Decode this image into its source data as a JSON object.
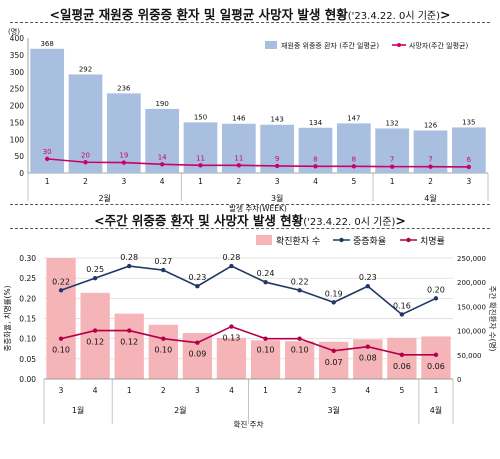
{
  "panel1": {
    "title": "<일평균 재원중 위중증 환자 및 일평균 사망자 발생 현황",
    "title_sub": "('23.4.22. 0시 기준)",
    "title_end": ">"
  },
  "panel2": {
    "title": "<주간 위중증 환자 및 사망자 발생 현황",
    "title_sub": "('23.4.22. 0시 기준)",
    "title_end": ">"
  },
  "colors": {
    "bar1": "#a8bfe0",
    "line1": "#cc0066",
    "bar2": "#f4b4b8",
    "line2": "#1f3864",
    "line3": "#b0004a"
  },
  "chart_data": [
    {
      "type": "bar",
      "categories": [
        "1",
        "2",
        "3",
        "4",
        "1",
        "2",
        "3",
        "4",
        "5",
        "1",
        "2",
        "3"
      ],
      "month_groups": [
        {
          "label": "2월",
          "count": 4
        },
        {
          "label": "3월",
          "count": 5
        },
        {
          "label": "4월",
          "count": 3
        }
      ],
      "series": [
        {
          "name": "재원중 위중증 환자 (주간 일평균)",
          "type": "bar",
          "values": [
            368,
            292,
            236,
            190,
            150,
            146,
            143,
            134,
            147,
            132,
            126,
            135
          ]
        },
        {
          "name": "사망자(주간 일평균)",
          "type": "line",
          "values": [
            30,
            20,
            19,
            14,
            11,
            11,
            9,
            8,
            8,
            7,
            7,
            6
          ]
        }
      ],
      "ylabel": "(명)",
      "xlabel": "발생 주차(WEEK)",
      "ylim": [
        0,
        400
      ],
      "yticks": [
        0,
        50,
        100,
        150,
        200,
        250,
        300,
        350,
        400
      ],
      "grid": false,
      "legend": "top-right"
    },
    {
      "type": "bar",
      "categories": [
        "3",
        "4",
        "1",
        "2",
        "3",
        "4",
        "1",
        "2",
        "3",
        "4",
        "5",
        "1"
      ],
      "month_groups": [
        {
          "label": "1월",
          "count": 2
        },
        {
          "label": "2월",
          "count": 4
        },
        {
          "label": "3월",
          "count": 5
        },
        {
          "label": "4월",
          "count": 1
        }
      ],
      "series": [
        {
          "name": "확진환자 수",
          "type": "bar",
          "axis": "right",
          "values": [
            250000,
            178000,
            135000,
            112000,
            95000,
            85000,
            80000,
            78000,
            77000,
            82000,
            85000,
            88000
          ]
        },
        {
          "name": "중증화율",
          "type": "line",
          "axis": "left",
          "values": [
            0.22,
            0.25,
            0.28,
            0.27,
            0.23,
            0.28,
            0.24,
            0.22,
            0.19,
            0.23,
            0.16,
            0.2
          ]
        },
        {
          "name": "치명률",
          "type": "line",
          "axis": "left",
          "values": [
            0.1,
            0.12,
            0.12,
            0.1,
            0.09,
            0.13,
            0.1,
            0.1,
            0.07,
            0.08,
            0.06,
            0.06
          ]
        }
      ],
      "ylabel": "중증화율, 치명률(%)",
      "y2label": "주간 확진환자 수(명)",
      "xlabel": "확진 주차",
      "ylim": [
        0,
        0.3
      ],
      "yticks": [
        "0.00",
        "0.05",
        "0.10",
        "0.15",
        "0.20",
        "0.25",
        "0.30"
      ],
      "y2lim": [
        0,
        250000
      ],
      "y2ticks": [
        "0",
        "50,000",
        "100,000",
        "150,000",
        "200,000",
        "250,000"
      ],
      "grid": true,
      "legend": "top-right"
    }
  ]
}
